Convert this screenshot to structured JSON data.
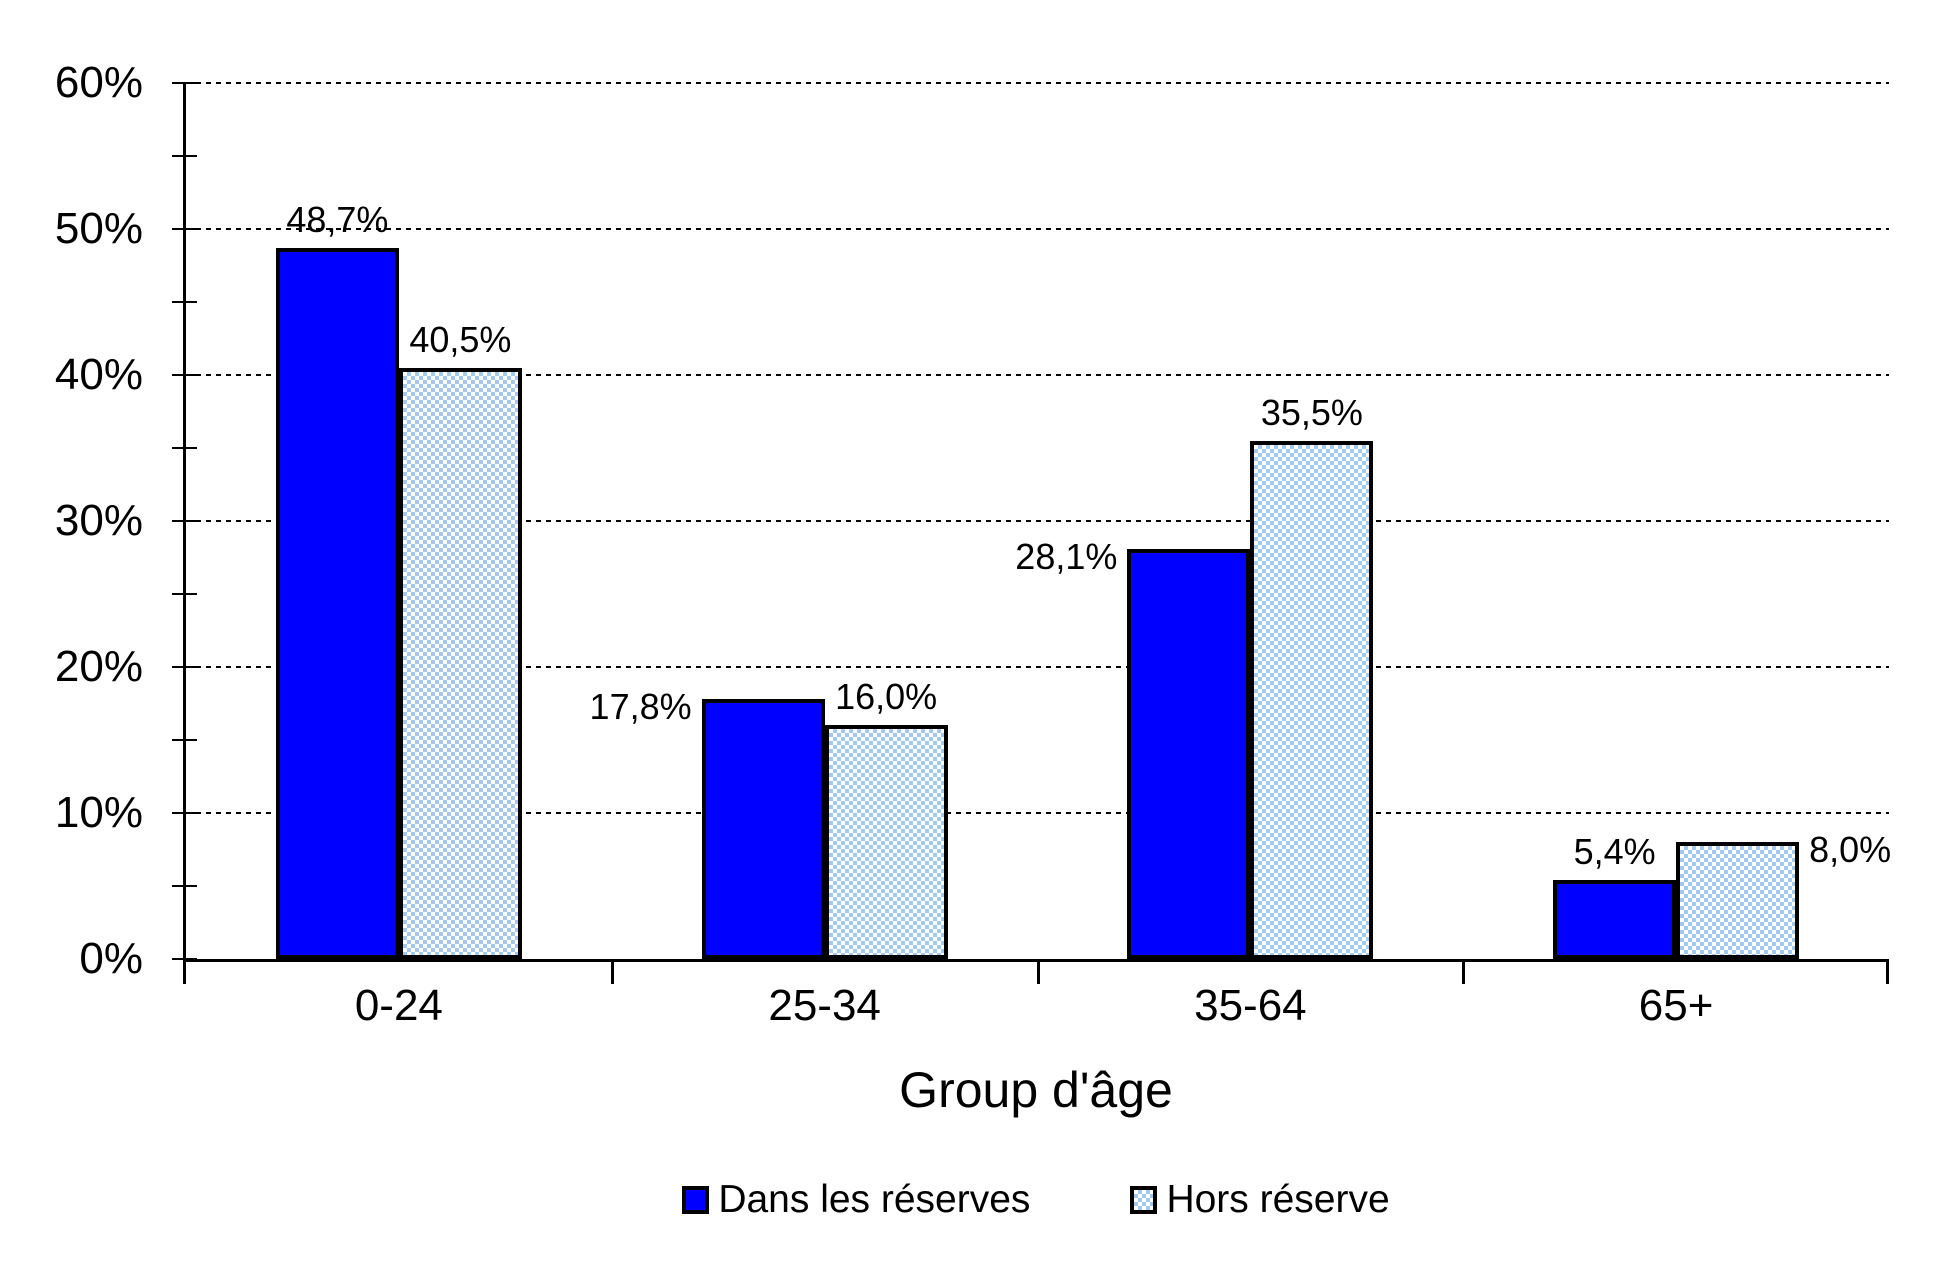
{
  "chart_data": {
    "type": "bar",
    "title": "",
    "xlabel": "Group d'âge",
    "ylabel": "",
    "categories": [
      "0-24",
      "25-34",
      "35-64",
      "65+"
    ],
    "series": [
      {
        "name": "Dans les réserves",
        "values": [
          48.7,
          17.8,
          28.1,
          5.4
        ],
        "data_labels": [
          "48,7%",
          "17,8%",
          "28,1%",
          "5,4%"
        ],
        "label_placements": [
          "above",
          "left",
          "left",
          "above"
        ],
        "fill_style": "solid",
        "fill_color": "#0000FF",
        "border_color": "#000000"
      },
      {
        "name": "Hors réserve",
        "values": [
          40.5,
          16.0,
          35.5,
          8.0
        ],
        "data_labels": [
          "40,5%",
          "16,0%",
          "35,5%",
          "8,0%"
        ],
        "label_placements": [
          "above",
          "above",
          "above",
          "right"
        ],
        "fill_style": "checker",
        "fill_color": "#A3C9EF",
        "border_color": "#000000"
      }
    ],
    "y_axis": {
      "min": 0,
      "max": 60,
      "major_step": 10,
      "minor_step": 5,
      "tick_labels": [
        "0%",
        "10%",
        "20%",
        "30%",
        "40%",
        "50%",
        "60%"
      ]
    },
    "grid": {
      "horizontal_major": true,
      "style": "dotted"
    },
    "legend": {
      "position": "bottom",
      "items": [
        "Dans les réserves",
        "Hors réserve"
      ]
    },
    "colors": {
      "series1": "#0000FF",
      "series2_pattern": "#A3C9EF",
      "axis": "#000000",
      "background": "#FFFFFF"
    }
  }
}
